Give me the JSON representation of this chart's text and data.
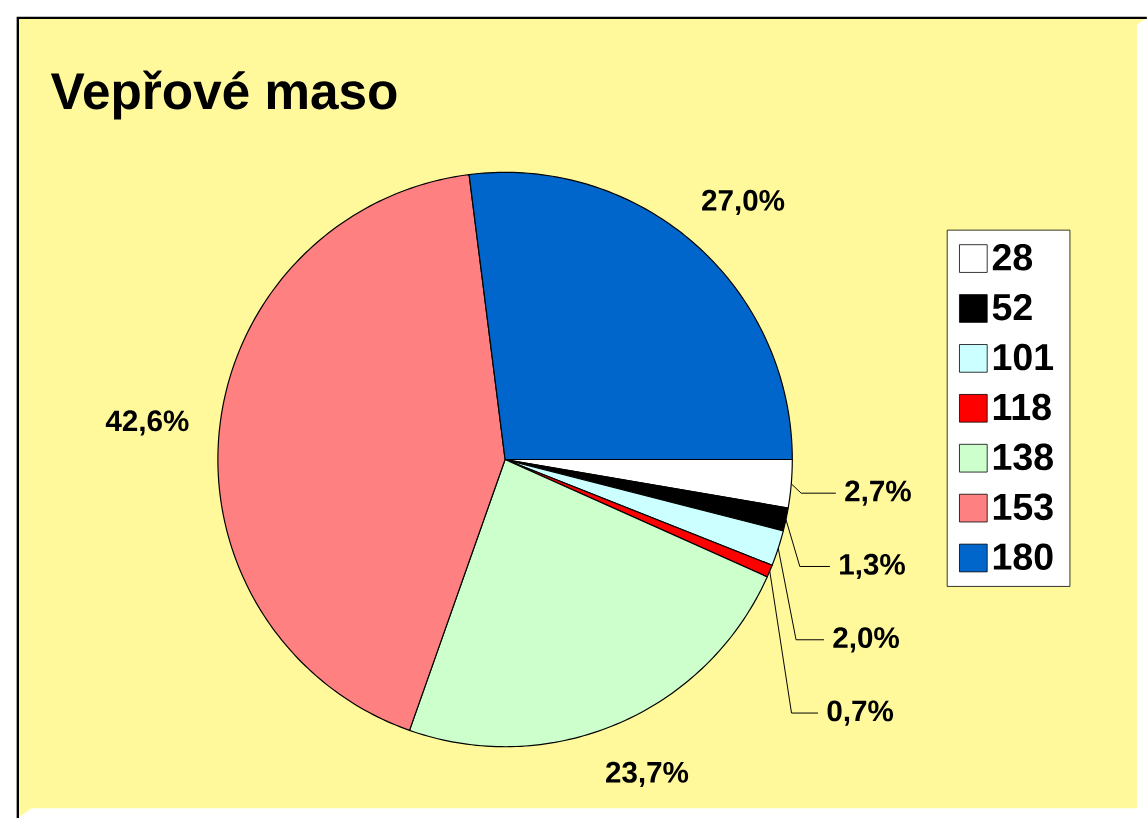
{
  "chart_data": {
    "type": "pie",
    "title": "Vepřové maso",
    "categories": [
      "28",
      "52",
      "101",
      "118",
      "138",
      "153",
      "180"
    ],
    "values": [
      2.7,
      1.3,
      2.0,
      0.7,
      23.7,
      42.6,
      27.0
    ],
    "value_labels": [
      "2,7%",
      "1,3%",
      "2,0%",
      "0,7%",
      "23,7%",
      "42,6%",
      "27,0%"
    ],
    "colors": [
      "#ffffff",
      "#000000",
      "#ccffff",
      "#ff0000",
      "#ccffcc",
      "#ff8080",
      "#0066cc"
    ],
    "legend": "right"
  }
}
